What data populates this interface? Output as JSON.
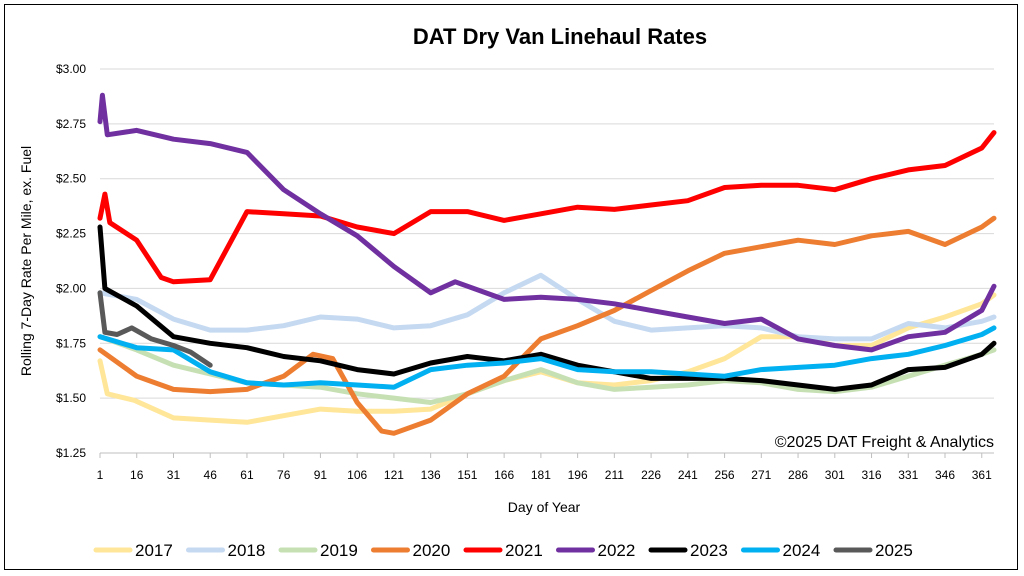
{
  "chart_data": {
    "type": "line",
    "title": "DAT Dry Van Linehaul Rates",
    "xlabel": "Day of Year",
    "ylabel": "Rolling 7-Day Rate Per Mile, ex. Fuel",
    "annotation": "©2025 DAT Freight & Analytics",
    "xlim": [
      1,
      366
    ],
    "ylim": [
      1.25,
      3.0
    ],
    "x_ticks": [
      1,
      16,
      31,
      46,
      61,
      76,
      91,
      106,
      121,
      136,
      151,
      166,
      181,
      196,
      211,
      226,
      241,
      256,
      271,
      286,
      301,
      316,
      331,
      346,
      361
    ],
    "y_ticks": [
      {
        "value": 1.25,
        "label": "$1.25"
      },
      {
        "value": 1.5,
        "label": "$1.50"
      },
      {
        "value": 1.75,
        "label": "$1.75"
      },
      {
        "value": 2.0,
        "label": "$2.00"
      },
      {
        "value": 2.25,
        "label": "$2.25"
      },
      {
        "value": 2.5,
        "label": "$2.50"
      },
      {
        "value": 2.75,
        "label": "$2.75"
      },
      {
        "value": 3.0,
        "label": "$3.00"
      }
    ],
    "grid": "horizontal",
    "legend_position": "bottom",
    "series": [
      {
        "name": "2017",
        "color": "#FFE699",
        "points": [
          [
            1,
            1.67
          ],
          [
            4,
            1.52
          ],
          [
            15,
            1.49
          ],
          [
            31,
            1.41
          ],
          [
            46,
            1.4
          ],
          [
            61,
            1.39
          ],
          [
            76,
            1.42
          ],
          [
            91,
            1.45
          ],
          [
            106,
            1.44
          ],
          [
            121,
            1.44
          ],
          [
            136,
            1.45
          ],
          [
            151,
            1.52
          ],
          [
            166,
            1.58
          ],
          [
            181,
            1.62
          ],
          [
            196,
            1.57
          ],
          [
            211,
            1.56
          ],
          [
            226,
            1.58
          ],
          [
            241,
            1.62
          ],
          [
            256,
            1.68
          ],
          [
            271,
            1.78
          ],
          [
            286,
            1.78
          ],
          [
            301,
            1.74
          ],
          [
            316,
            1.74
          ],
          [
            331,
            1.82
          ],
          [
            346,
            1.87
          ],
          [
            361,
            1.93
          ],
          [
            366,
            1.97
          ]
        ]
      },
      {
        "name": "2018",
        "color": "#C5D9F1",
        "points": [
          [
            1,
            1.98
          ],
          [
            16,
            1.95
          ],
          [
            31,
            1.86
          ],
          [
            46,
            1.81
          ],
          [
            61,
            1.81
          ],
          [
            76,
            1.83
          ],
          [
            91,
            1.87
          ],
          [
            106,
            1.86
          ],
          [
            121,
            1.82
          ],
          [
            136,
            1.83
          ],
          [
            151,
            1.88
          ],
          [
            166,
            1.98
          ],
          [
            181,
            2.06
          ],
          [
            196,
            1.95
          ],
          [
            211,
            1.85
          ],
          [
            226,
            1.81
          ],
          [
            241,
            1.82
          ],
          [
            256,
            1.83
          ],
          [
            271,
            1.82
          ],
          [
            286,
            1.78
          ],
          [
            301,
            1.77
          ],
          [
            316,
            1.77
          ],
          [
            331,
            1.84
          ],
          [
            346,
            1.82
          ],
          [
            361,
            1.85
          ],
          [
            366,
            1.87
          ]
        ]
      },
      {
        "name": "2019",
        "color": "#C6E0B4",
        "points": [
          [
            1,
            1.78
          ],
          [
            16,
            1.72
          ],
          [
            31,
            1.65
          ],
          [
            46,
            1.61
          ],
          [
            61,
            1.57
          ],
          [
            76,
            1.56
          ],
          [
            91,
            1.55
          ],
          [
            106,
            1.52
          ],
          [
            121,
            1.5
          ],
          [
            136,
            1.48
          ],
          [
            151,
            1.52
          ],
          [
            166,
            1.58
          ],
          [
            181,
            1.63
          ],
          [
            196,
            1.57
          ],
          [
            211,
            1.54
          ],
          [
            226,
            1.55
          ],
          [
            241,
            1.56
          ],
          [
            256,
            1.58
          ],
          [
            271,
            1.57
          ],
          [
            286,
            1.54
          ],
          [
            301,
            1.53
          ],
          [
            316,
            1.55
          ],
          [
            331,
            1.6
          ],
          [
            346,
            1.65
          ],
          [
            361,
            1.7
          ],
          [
            366,
            1.72
          ]
        ]
      },
      {
        "name": "2020",
        "color": "#ED7D31",
        "points": [
          [
            1,
            1.72
          ],
          [
            16,
            1.6
          ],
          [
            31,
            1.54
          ],
          [
            46,
            1.53
          ],
          [
            61,
            1.54
          ],
          [
            76,
            1.6
          ],
          [
            88,
            1.7
          ],
          [
            96,
            1.68
          ],
          [
            106,
            1.48
          ],
          [
            116,
            1.35
          ],
          [
            121,
            1.34
          ],
          [
            136,
            1.4
          ],
          [
            151,
            1.52
          ],
          [
            166,
            1.6
          ],
          [
            181,
            1.77
          ],
          [
            196,
            1.83
          ],
          [
            211,
            1.9
          ],
          [
            226,
            1.99
          ],
          [
            241,
            2.08
          ],
          [
            256,
            2.16
          ],
          [
            271,
            2.19
          ],
          [
            286,
            2.22
          ],
          [
            301,
            2.2
          ],
          [
            316,
            2.24
          ],
          [
            331,
            2.26
          ],
          [
            346,
            2.2
          ],
          [
            361,
            2.28
          ],
          [
            366,
            2.32
          ]
        ]
      },
      {
        "name": "2021",
        "color": "#FF0000",
        "points": [
          [
            1,
            2.32
          ],
          [
            3,
            2.43
          ],
          [
            5,
            2.3
          ],
          [
            16,
            2.22
          ],
          [
            26,
            2.05
          ],
          [
            31,
            2.03
          ],
          [
            46,
            2.04
          ],
          [
            61,
            2.35
          ],
          [
            76,
            2.34
          ],
          [
            91,
            2.33
          ],
          [
            106,
            2.28
          ],
          [
            121,
            2.25
          ],
          [
            136,
            2.35
          ],
          [
            151,
            2.35
          ],
          [
            166,
            2.31
          ],
          [
            181,
            2.34
          ],
          [
            196,
            2.37
          ],
          [
            211,
            2.36
          ],
          [
            226,
            2.38
          ],
          [
            241,
            2.4
          ],
          [
            256,
            2.46
          ],
          [
            271,
            2.47
          ],
          [
            286,
            2.47
          ],
          [
            301,
            2.45
          ],
          [
            316,
            2.5
          ],
          [
            331,
            2.54
          ],
          [
            346,
            2.56
          ],
          [
            361,
            2.64
          ],
          [
            366,
            2.71
          ]
        ]
      },
      {
        "name": "2022",
        "color": "#7030A0",
        "points": [
          [
            1,
            2.76
          ],
          [
            2,
            2.88
          ],
          [
            4,
            2.7
          ],
          [
            16,
            2.72
          ],
          [
            31,
            2.68
          ],
          [
            46,
            2.66
          ],
          [
            61,
            2.62
          ],
          [
            76,
            2.45
          ],
          [
            91,
            2.34
          ],
          [
            106,
            2.24
          ],
          [
            121,
            2.1
          ],
          [
            136,
            1.98
          ],
          [
            146,
            2.03
          ],
          [
            151,
            2.01
          ],
          [
            166,
            1.95
          ],
          [
            181,
            1.96
          ],
          [
            196,
            1.95
          ],
          [
            211,
            1.93
          ],
          [
            226,
            1.9
          ],
          [
            241,
            1.87
          ],
          [
            256,
            1.84
          ],
          [
            271,
            1.86
          ],
          [
            286,
            1.77
          ],
          [
            301,
            1.74
          ],
          [
            316,
            1.72
          ],
          [
            331,
            1.78
          ],
          [
            346,
            1.8
          ],
          [
            361,
            1.9
          ],
          [
            366,
            2.01
          ]
        ]
      },
      {
        "name": "2023",
        "color": "#000000",
        "points": [
          [
            1,
            2.28
          ],
          [
            3,
            2.0
          ],
          [
            16,
            1.92
          ],
          [
            31,
            1.78
          ],
          [
            46,
            1.75
          ],
          [
            61,
            1.73
          ],
          [
            76,
            1.69
          ],
          [
            91,
            1.67
          ],
          [
            106,
            1.63
          ],
          [
            121,
            1.61
          ],
          [
            136,
            1.66
          ],
          [
            151,
            1.69
          ],
          [
            166,
            1.67
          ],
          [
            181,
            1.7
          ],
          [
            196,
            1.65
          ],
          [
            211,
            1.62
          ],
          [
            226,
            1.59
          ],
          [
            241,
            1.59
          ],
          [
            256,
            1.59
          ],
          [
            271,
            1.58
          ],
          [
            286,
            1.56
          ],
          [
            301,
            1.54
          ],
          [
            316,
            1.56
          ],
          [
            331,
            1.63
          ],
          [
            346,
            1.64
          ],
          [
            361,
            1.7
          ],
          [
            366,
            1.75
          ]
        ]
      },
      {
        "name": "2024",
        "color": "#00B0F0",
        "points": [
          [
            1,
            1.78
          ],
          [
            16,
            1.73
          ],
          [
            31,
            1.72
          ],
          [
            46,
            1.62
          ],
          [
            61,
            1.57
          ],
          [
            76,
            1.56
          ],
          [
            91,
            1.57
          ],
          [
            106,
            1.56
          ],
          [
            121,
            1.55
          ],
          [
            136,
            1.63
          ],
          [
            151,
            1.65
          ],
          [
            166,
            1.66
          ],
          [
            181,
            1.68
          ],
          [
            196,
            1.63
          ],
          [
            211,
            1.62
          ],
          [
            226,
            1.62
          ],
          [
            241,
            1.61
          ],
          [
            256,
            1.6
          ],
          [
            271,
            1.63
          ],
          [
            286,
            1.64
          ],
          [
            301,
            1.65
          ],
          [
            316,
            1.68
          ],
          [
            331,
            1.7
          ],
          [
            346,
            1.74
          ],
          [
            361,
            1.79
          ],
          [
            366,
            1.82
          ]
        ]
      },
      {
        "name": "2025",
        "color": "#595959",
        "points": [
          [
            1,
            1.98
          ],
          [
            3,
            1.8
          ],
          [
            8,
            1.79
          ],
          [
            14,
            1.82
          ],
          [
            22,
            1.77
          ],
          [
            31,
            1.74
          ],
          [
            38,
            1.71
          ],
          [
            46,
            1.65
          ]
        ]
      }
    ]
  }
}
